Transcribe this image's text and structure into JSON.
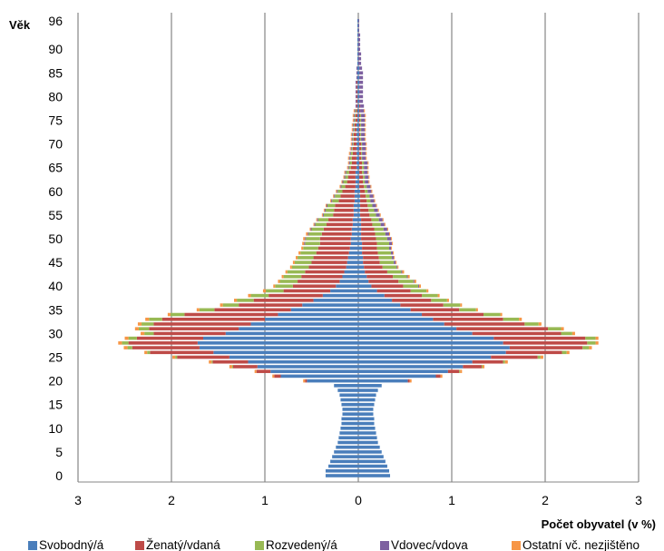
{
  "chart_data": {
    "type": "bar",
    "orientation": "horizontal",
    "stacked": true,
    "mirrored": true,
    "xlabel": "Počet obyvatel (v %)",
    "ylabel": "Věk",
    "xlim": [
      -3,
      3
    ],
    "x_ticks": [
      -3,
      -2,
      -1,
      0,
      1,
      2,
      3
    ],
    "x_tick_labels": [
      "3",
      "2",
      "1",
      "0",
      "1",
      "2",
      "3"
    ],
    "y_ticks": [
      0,
      5,
      10,
      15,
      20,
      25,
      30,
      35,
      40,
      45,
      50,
      55,
      60,
      65,
      70,
      75,
      80,
      85,
      90,
      96
    ],
    "grid": true,
    "legend": "bottom",
    "ages": [
      0,
      1,
      2,
      3,
      4,
      5,
      6,
      7,
      8,
      9,
      10,
      11,
      12,
      13,
      14,
      15,
      16,
      17,
      18,
      19,
      20,
      21,
      22,
      23,
      24,
      25,
      26,
      27,
      28,
      29,
      30,
      31,
      32,
      33,
      34,
      35,
      36,
      37,
      38,
      39,
      40,
      41,
      42,
      43,
      44,
      45,
      46,
      47,
      48,
      49,
      50,
      51,
      52,
      53,
      54,
      55,
      56,
      57,
      58,
      59,
      60,
      61,
      62,
      63,
      64,
      65,
      66,
      67,
      68,
      69,
      70,
      71,
      72,
      73,
      74,
      75,
      76,
      77,
      78,
      79,
      80,
      81,
      82,
      83,
      84,
      85,
      86,
      87,
      88,
      89,
      90,
      91,
      92,
      93,
      94,
      95,
      96
    ],
    "categories": [
      "Svobodný/á",
      "Ženatý/vdaná",
      "Rozvedený/á",
      "Vdovec/vdova",
      "Ostatní vč. nezjištěno"
    ],
    "colors": [
      "#4a7ebb",
      "#be4b48",
      "#98b954",
      "#7d60a0",
      "#f79646"
    ],
    "left": {
      "Svobodný/á": [
        0.35,
        0.35,
        0.32,
        0.3,
        0.28,
        0.26,
        0.24,
        0.22,
        0.21,
        0.2,
        0.19,
        0.18,
        0.18,
        0.17,
        0.17,
        0.18,
        0.19,
        0.2,
        0.22,
        0.26,
        0.55,
        0.83,
        0.94,
        1.08,
        1.18,
        1.38,
        1.55,
        1.7,
        1.72,
        1.66,
        1.42,
        1.28,
        1.15,
        1.0,
        0.86,
        0.72,
        0.6,
        0.48,
        0.38,
        0.3,
        0.24,
        0.2,
        0.17,
        0.15,
        0.13,
        0.12,
        0.11,
        0.1,
        0.09,
        0.08,
        0.08,
        0.07,
        0.07,
        0.06,
        0.06,
        0.05,
        0.05,
        0.05,
        0.04,
        0.04,
        0.04,
        0.03,
        0.03,
        0.03,
        0.03,
        0.02,
        0.02,
        0.02,
        0.02,
        0.02,
        0.02,
        0.02,
        0.02,
        0.02,
        0.02,
        0.01,
        0.01,
        0.01,
        0.01,
        0.01,
        0.01,
        0.01,
        0.01,
        0.01,
        0.01,
        0.01,
        0.01,
        0.01,
        0.01,
        0.01,
        0.01,
        0.01,
        0.01,
        0.01,
        0.01,
        0.01,
        0.01
      ],
      "Ženatý/vdaná": [
        0,
        0,
        0,
        0,
        0,
        0,
        0,
        0,
        0,
        0,
        0,
        0,
        0,
        0,
        0,
        0,
        0,
        0,
        0,
        0,
        0.02,
        0.07,
        0.15,
        0.26,
        0.38,
        0.56,
        0.68,
        0.72,
        0.74,
        0.71,
        0.77,
        0.96,
        1.04,
        1.1,
        1.0,
        0.82,
        0.68,
        0.64,
        0.58,
        0.5,
        0.46,
        0.45,
        0.44,
        0.42,
        0.4,
        0.38,
        0.37,
        0.35,
        0.34,
        0.33,
        0.33,
        0.32,
        0.3,
        0.28,
        0.26,
        0.22,
        0.21,
        0.2,
        0.17,
        0.15,
        0.13,
        0.11,
        0.09,
        0.08,
        0.07,
        0.06,
        0.05,
        0.05,
        0.04,
        0.04,
        0.03,
        0.03,
        0.03,
        0.02,
        0.02,
        0.02,
        0.02,
        0.01,
        0.01,
        0.01,
        0.01,
        0.01,
        0.01,
        0.01,
        0,
        0,
        0,
        0,
        0,
        0,
        0,
        0,
        0,
        0,
        0,
        0,
        0
      ],
      "Rozvedený/á": [
        0,
        0,
        0,
        0,
        0,
        0,
        0,
        0,
        0,
        0,
        0,
        0,
        0,
        0,
        0,
        0,
        0,
        0,
        0,
        0,
        0,
        0,
        0,
        0.01,
        0.01,
        0.02,
        0.03,
        0.05,
        0.07,
        0.09,
        0.1,
        0.11,
        0.13,
        0.14,
        0.15,
        0.16,
        0.17,
        0.18,
        0.19,
        0.19,
        0.19,
        0.19,
        0.19,
        0.19,
        0.18,
        0.18,
        0.17,
        0.17,
        0.16,
        0.16,
        0.15,
        0.14,
        0.13,
        0.12,
        0.11,
        0.1,
        0.09,
        0.08,
        0.07,
        0.06,
        0.05,
        0.04,
        0.04,
        0.03,
        0.03,
        0.02,
        0.02,
        0.02,
        0.02,
        0.01,
        0.01,
        0.01,
        0.01,
        0.01,
        0.01,
        0.01,
        0.01,
        0.01,
        0,
        0,
        0,
        0,
        0,
        0,
        0,
        0,
        0,
        0,
        0,
        0,
        0,
        0,
        0,
        0,
        0,
        0,
        0
      ],
      "Vdovec/vdova": [
        0,
        0,
        0,
        0,
        0,
        0,
        0,
        0,
        0,
        0,
        0,
        0,
        0,
        0,
        0,
        0,
        0,
        0,
        0,
        0,
        0,
        0,
        0,
        0,
        0,
        0,
        0,
        0,
        0,
        0,
        0,
        0,
        0,
        0,
        0,
        0,
        0,
        0,
        0,
        0,
        0,
        0,
        0,
        0,
        0,
        0,
        0,
        0,
        0,
        0.01,
        0.01,
        0.01,
        0.01,
        0.01,
        0.01,
        0.01,
        0.01,
        0.01,
        0.01,
        0.01,
        0.01,
        0.01,
        0.01,
        0.01,
        0.01,
        0.01,
        0.01,
        0.01,
        0.01,
        0.01,
        0.01,
        0.01,
        0.01,
        0.01,
        0.01,
        0.01,
        0.01,
        0.01,
        0.01,
        0.01,
        0.01,
        0.01,
        0.01,
        0.01,
        0.01,
        0.01,
        0.01,
        0,
        0,
        0,
        0,
        0,
        0,
        0,
        0,
        0,
        0
      ],
      "Ostatní vč. nezjištěno": [
        0,
        0,
        0,
        0,
        0,
        0,
        0,
        0,
        0,
        0,
        0,
        0,
        0,
        0,
        0,
        0,
        0,
        0,
        0,
        0,
        0.02,
        0.02,
        0.02,
        0.03,
        0.03,
        0.03,
        0.03,
        0.04,
        0.04,
        0.04,
        0.04,
        0.04,
        0.04,
        0.04,
        0.03,
        0.03,
        0.03,
        0.03,
        0.03,
        0.03,
        0.02,
        0.02,
        0.02,
        0.02,
        0.02,
        0.02,
        0.02,
        0.02,
        0.02,
        0.02,
        0.02,
        0.02,
        0.01,
        0.01,
        0.01,
        0.01,
        0.01,
        0.01,
        0.01,
        0.01,
        0.01,
        0.01,
        0.01,
        0.01,
        0.01,
        0.01,
        0.01,
        0.01,
        0.01,
        0.01,
        0.01,
        0.01,
        0.01,
        0.01,
        0.01,
        0.01,
        0.01,
        0.01,
        0,
        0,
        0,
        0,
        0,
        0,
        0,
        0,
        0,
        0,
        0,
        0,
        0,
        0,
        0,
        0,
        0,
        0,
        0
      ]
    },
    "right": {
      "Svobodný/á": [
        0.34,
        0.33,
        0.31,
        0.29,
        0.27,
        0.25,
        0.23,
        0.21,
        0.2,
        0.19,
        0.18,
        0.17,
        0.17,
        0.16,
        0.16,
        0.17,
        0.18,
        0.19,
        0.21,
        0.25,
        0.53,
        0.83,
        0.96,
        1.12,
        1.22,
        1.42,
        1.58,
        1.62,
        1.55,
        1.45,
        1.22,
        1.05,
        0.92,
        0.8,
        0.68,
        0.56,
        0.45,
        0.36,
        0.28,
        0.2,
        0.14,
        0.11,
        0.09,
        0.07,
        0.06,
        0.05,
        0.05,
        0.04,
        0.04,
        0.04,
        0.03,
        0.03,
        0.03,
        0.03,
        0.03,
        0.02,
        0.02,
        0.02,
        0.02,
        0.02,
        0.02,
        0.01,
        0.01,
        0.01,
        0.01,
        0.01,
        0.01,
        0.01,
        0.01,
        0.01,
        0.01,
        0.01,
        0.01,
        0.01,
        0.01,
        0.01,
        0.01,
        0.01,
        0.01,
        0.01,
        0.01,
        0.01,
        0.01,
        0.01,
        0.01,
        0.01,
        0.01,
        0,
        0,
        0,
        0,
        0,
        0,
        0,
        0,
        0,
        0
      ],
      "Ženatý/vdaná": [
        0,
        0,
        0,
        0,
        0,
        0,
        0,
        0,
        0,
        0,
        0,
        0,
        0,
        0,
        0,
        0,
        0,
        0,
        0,
        0,
        0.02,
        0.05,
        0.12,
        0.2,
        0.33,
        0.5,
        0.6,
        0.78,
        0.9,
        0.98,
        0.95,
        0.98,
        0.86,
        0.75,
        0.66,
        0.52,
        0.46,
        0.42,
        0.4,
        0.36,
        0.34,
        0.32,
        0.28,
        0.24,
        0.2,
        0.18,
        0.17,
        0.17,
        0.16,
        0.16,
        0.16,
        0.15,
        0.14,
        0.12,
        0.11,
        0.1,
        0.09,
        0.08,
        0.07,
        0.06,
        0.05,
        0.05,
        0.04,
        0.04,
        0.03,
        0.03,
        0.03,
        0.02,
        0.02,
        0.02,
        0.02,
        0.01,
        0.01,
        0.01,
        0.01,
        0.01,
        0.01,
        0.01,
        0.01,
        0,
        0,
        0,
        0,
        0,
        0,
        0,
        0,
        0,
        0,
        0,
        0,
        0,
        0,
        0,
        0,
        0,
        0
      ],
      "Rozvedený/á": [
        0,
        0,
        0,
        0,
        0,
        0,
        0,
        0,
        0,
        0,
        0,
        0,
        0,
        0,
        0,
        0,
        0,
        0,
        0,
        0,
        0,
        0,
        0.01,
        0.01,
        0.02,
        0.03,
        0.05,
        0.07,
        0.09,
        0.11,
        0.12,
        0.14,
        0.15,
        0.17,
        0.18,
        0.18,
        0.18,
        0.17,
        0.17,
        0.17,
        0.16,
        0.16,
        0.15,
        0.15,
        0.15,
        0.15,
        0.14,
        0.14,
        0.13,
        0.13,
        0.12,
        0.11,
        0.1,
        0.09,
        0.08,
        0.07,
        0.06,
        0.05,
        0.04,
        0.04,
        0.03,
        0.03,
        0.02,
        0.02,
        0.02,
        0.02,
        0.02,
        0.01,
        0.01,
        0.01,
        0.01,
        0.01,
        0.01,
        0.01,
        0.01,
        0.01,
        0.01,
        0,
        0,
        0,
        0,
        0,
        0,
        0,
        0,
        0,
        0,
        0,
        0,
        0,
        0,
        0,
        0,
        0,
        0,
        0
      ],
      "Vdovec/vdova": [
        0,
        0,
        0,
        0,
        0,
        0,
        0,
        0,
        0,
        0,
        0,
        0,
        0,
        0,
        0,
        0,
        0,
        0,
        0,
        0,
        0,
        0,
        0,
        0,
        0,
        0,
        0,
        0,
        0,
        0,
        0,
        0,
        0,
        0,
        0,
        0,
        0,
        0,
        0,
        0,
        0.01,
        0.01,
        0.01,
        0.01,
        0.01,
        0.02,
        0.02,
        0.02,
        0.02,
        0.03,
        0.04,
        0.04,
        0.04,
        0.04,
        0.04,
        0.04,
        0.04,
        0.04,
        0.04,
        0.04,
        0.04,
        0.04,
        0.04,
        0.04,
        0.04,
        0.04,
        0.04,
        0.04,
        0.04,
        0.04,
        0.04,
        0.04,
        0.04,
        0.04,
        0.04,
        0.04,
        0.04,
        0.04,
        0.04,
        0.04,
        0.04,
        0.04,
        0.04,
        0.04,
        0.04,
        0.04,
        0.03,
        0.03,
        0.03,
        0.03,
        0.02,
        0.02,
        0.02,
        0.02,
        0.01,
        0.01,
        0.01
      ],
      "Ostatní vč. nezjištěno": [
        0,
        0,
        0,
        0,
        0,
        0,
        0,
        0,
        0,
        0,
        0,
        0,
        0,
        0,
        0,
        0,
        0,
        0,
        0,
        0,
        0.02,
        0.02,
        0.02,
        0.02,
        0.03,
        0.03,
        0.03,
        0.03,
        0.03,
        0.03,
        0.03,
        0.03,
        0.03,
        0.03,
        0.02,
        0.02,
        0.02,
        0.02,
        0.02,
        0.02,
        0.02,
        0.02,
        0.02,
        0.02,
        0.01,
        0.01,
        0.01,
        0.01,
        0.01,
        0.01,
        0.01,
        0.01,
        0.01,
        0.01,
        0.01,
        0.01,
        0.01,
        0.01,
        0.01,
        0.01,
        0.01,
        0.01,
        0.01,
        0.01,
        0.01,
        0.01,
        0.01,
        0.01,
        0.01,
        0.01,
        0.01,
        0.01,
        0.01,
        0.01,
        0.01,
        0.01,
        0.01,
        0.01,
        0,
        0,
        0,
        0,
        0,
        0,
        0,
        0,
        0,
        0,
        0,
        0,
        0,
        0,
        0,
        0,
        0,
        0,
        0
      ]
    }
  }
}
